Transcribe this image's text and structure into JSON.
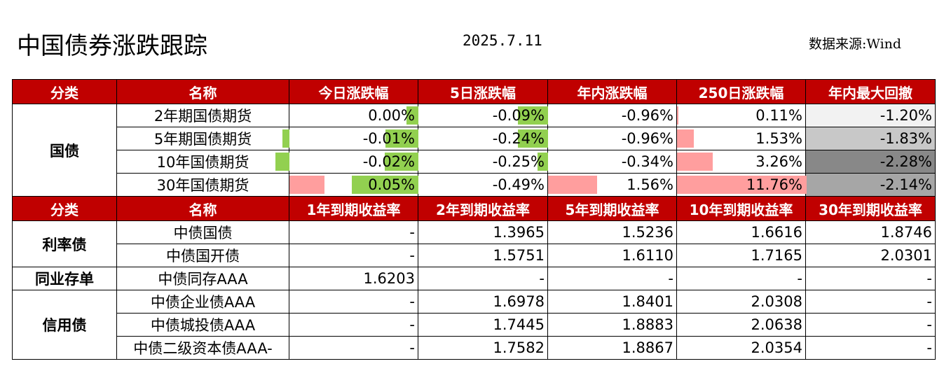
{
  "header": {
    "title": "中国债券涨跌跟踪",
    "date": "2025.7.11",
    "source": "数据来源:Wind"
  },
  "colors": {
    "header_bg": "#c00000",
    "up_bar": "#ff9e9e",
    "down_bar": "#92d050"
  },
  "section1": {
    "columns": [
      "分类",
      "名称",
      "今日涨跌幅",
      "5日涨跌幅",
      "年内涨跌幅",
      "250日涨跌幅",
      "年内最大回撤"
    ],
    "category": "国债",
    "rows": [
      {
        "name": "2年期国债期货",
        "day": "0.00%",
        "d5": "-0.09%",
        "ytd": "-0.96%",
        "d250": "0.11%",
        "dd": "-1.20%",
        "bars": {
          "day": 0.0,
          "d5": 0.09,
          "ytd": 0.96,
          "d250": 0.11
        }
      },
      {
        "name": "5年期国债期货",
        "day": "-0.01%",
        "d5": "-0.24%",
        "ytd": "-0.96%",
        "d250": "1.53%",
        "dd": "-1.83%",
        "bars": {
          "day": 0.01,
          "d5": 0.24,
          "ytd": 0.96,
          "d250": 1.53
        }
      },
      {
        "name": "10年国债期货",
        "day": "-0.02%",
        "d5": "-0.25%",
        "ytd": "-0.34%",
        "d250": "3.26%",
        "dd": "-2.28%",
        "bars": {
          "day": 0.02,
          "d5": 0.25,
          "ytd": 0.34,
          "d250": 3.26
        }
      },
      {
        "name": "30年国债期货",
        "day": "0.05%",
        "d5": "-0.49%",
        "ytd": "1.56%",
        "d250": "11.76%",
        "dd": "-2.14%",
        "bars": {
          "day": 0.05,
          "d5": 0.49,
          "ytd": 1.56,
          "d250": 11.76
        }
      }
    ],
    "drawdown_colors": [
      "#f2f2f2",
      "#c8c8c8",
      "#888888",
      "#a6a6a6"
    ]
  },
  "section2": {
    "columns": [
      "分类",
      "名称",
      "1年到期收益率",
      "2年到期收益率",
      "5年到期收益率",
      "10年到期收益率",
      "30年到期收益率"
    ],
    "groups": [
      {
        "category": "利率债",
        "rows": [
          {
            "name": "中债国债",
            "values": [
              "-",
              "1.3965",
              "1.5236",
              "1.6616",
              "1.8746"
            ]
          },
          {
            "name": "中债国开债",
            "values": [
              "-",
              "1.5751",
              "1.6110",
              "1.7165",
              "2.0301"
            ]
          }
        ]
      },
      {
        "category": "同业存单",
        "rows": [
          {
            "name": "中债同存AAA",
            "values": [
              "1.6203",
              "-",
              "-",
              "-",
              "-"
            ]
          }
        ]
      },
      {
        "category": "信用债",
        "rows": [
          {
            "name": "中债企业债AAA",
            "values": [
              "-",
              "1.6978",
              "1.8401",
              "2.0308",
              "-"
            ]
          },
          {
            "name": "中债城投债AAA",
            "values": [
              "-",
              "1.7445",
              "1.8883",
              "2.0638",
              "-"
            ]
          },
          {
            "name": "中债二级资本债AAA-",
            "values": [
              "-",
              "1.7582",
              "1.8867",
              "2.0354",
              "-"
            ]
          }
        ]
      }
    ]
  }
}
